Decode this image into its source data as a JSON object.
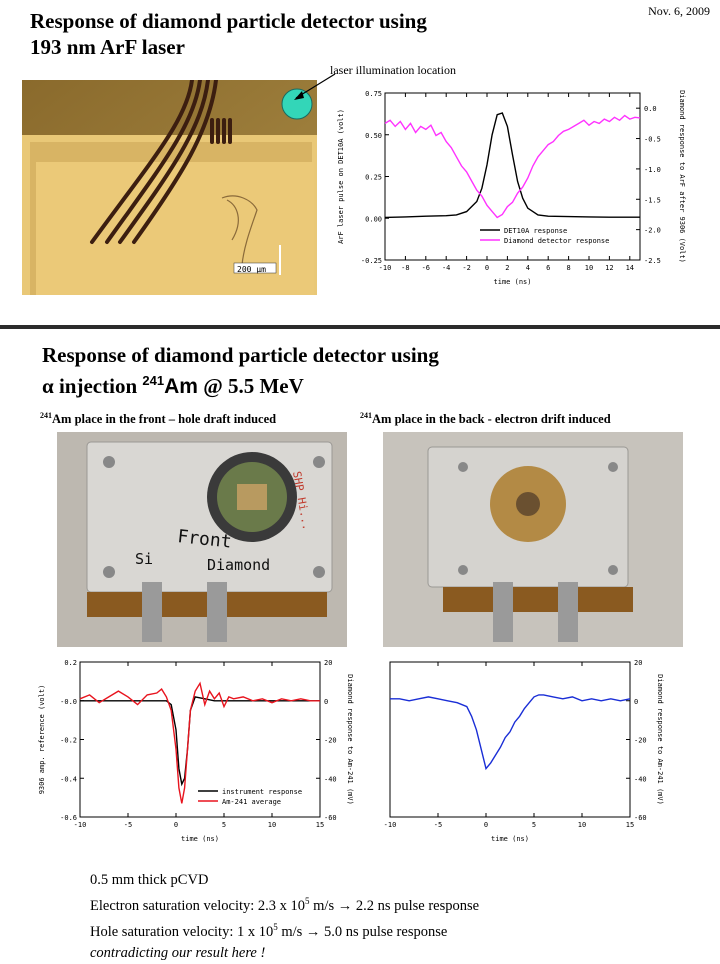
{
  "header": {
    "date": "Nov. 6, 2009",
    "title_line1": "Response of diamond particle detector using",
    "title_line2": "193 nm ArF laser",
    "callout": "laser illumination location",
    "scale_label": "200 μm"
  },
  "section2": {
    "title_line1": "Response of diamond particle detector using",
    "title_line2_prefix": "α injection ",
    "title_iso_sup": "241",
    "title_iso": "Am",
    "title_line2_suffix": " @ 5.5 MeV",
    "caption_left_sup": "241",
    "caption_left": "Am place in the front – hole draft induced",
    "caption_right_sup": "241",
    "caption_right": "Am place in the back - electron drift induced",
    "label_front": "Front",
    "label_si": "Si",
    "label_diamond": "Diamond",
    "label_side": "SHP Hi..."
  },
  "notes": {
    "line1": "0.5 mm thick pCVD",
    "line2_a": "Electron saturation velocity: 2.3 x 10",
    "line2_sup": "5",
    "line2_b": " m/s → 2.2 ns   pulse response",
    "line3_a": "Hole saturation velocity:         1 x 10",
    "line3_sup": "5",
    "line3_b": " m/s → 5.0 ns   pulse response",
    "line4": "contradicting our result here !"
  },
  "colors": {
    "black_trace": "#000000",
    "magenta_trace": "#ff33ff",
    "red_trace": "#e8141e",
    "blue_trace": "#1a2ed6",
    "teal_marker": "#33d6b8"
  },
  "chart_data": [
    {
      "id": "arf",
      "type": "line",
      "xlabel": "time (ns)",
      "ylabel": "ArF laser pulse on DET10A (volt)",
      "y2label": "Diamond response to ArF after 9306 (Volt)",
      "xlim": [
        -10,
        15
      ],
      "ylim": [
        -0.25,
        0.75
      ],
      "y2lim": [
        -2.5,
        0.25
      ],
      "xticks": [
        "-10",
        "-8",
        "-6",
        "-4",
        "-2",
        "0",
        "2",
        "4",
        "6",
        "8",
        "10",
        "12",
        "14"
      ],
      "yticks": [
        "0.75",
        "0.50",
        "0.25",
        "0.00",
        "-0.25"
      ],
      "y2ticks": [
        "0.0",
        "-0.5",
        "-1.0",
        "-1.5",
        "-2.0",
        "-2.5"
      ],
      "legend_position": "bottom-right",
      "series": [
        {
          "name": "DET10A response",
          "axis": "left",
          "color": "#000000",
          "x": [
            -10,
            -8,
            -6,
            -4,
            -3,
            -2,
            -1,
            -0.5,
            0,
            0.5,
            1,
            1.5,
            2,
            2.5,
            3,
            3.5,
            4,
            5,
            6,
            8,
            10,
            12,
            14,
            15
          ],
          "y": [
            0.005,
            0.008,
            0.012,
            0.015,
            0.02,
            0.04,
            0.1,
            0.18,
            0.32,
            0.5,
            0.62,
            0.63,
            0.55,
            0.38,
            0.22,
            0.12,
            0.06,
            0.02,
            0.012,
            0.01,
            0.008,
            0.006,
            0.006,
            0.006
          ]
        },
        {
          "name": "Diamond detector response",
          "axis": "right",
          "color": "#ff33ff",
          "x": [
            -10,
            -9.5,
            -9,
            -8.5,
            -8,
            -7.5,
            -7,
            -6.5,
            -6,
            -5.5,
            -5,
            -4.5,
            -4,
            -3.5,
            -3,
            -2.5,
            -2,
            -1.5,
            -1,
            -0.5,
            0,
            0.5,
            1,
            1.5,
            2,
            2.5,
            3,
            3.5,
            4,
            4.5,
            5,
            5.5,
            6,
            6.5,
            7,
            7.5,
            8,
            8.5,
            9,
            9.5,
            10,
            10.5,
            11,
            11.5,
            12,
            12.5,
            13,
            13.5,
            14,
            14.5,
            15
          ],
          "y": [
            -0.25,
            -0.2,
            -0.3,
            -0.22,
            -0.35,
            -0.25,
            -0.4,
            -0.3,
            -0.35,
            -0.28,
            -0.45,
            -0.4,
            -0.55,
            -0.65,
            -0.8,
            -0.95,
            -1.05,
            -1.2,
            -1.35,
            -1.45,
            -1.6,
            -1.7,
            -1.8,
            -1.75,
            -1.62,
            -1.55,
            -1.4,
            -1.3,
            -1.15,
            -0.95,
            -0.8,
            -0.7,
            -0.6,
            -0.55,
            -0.45,
            -0.38,
            -0.35,
            -0.3,
            -0.25,
            -0.2,
            -0.28,
            -0.22,
            -0.25,
            -0.18,
            -0.22,
            -0.15,
            -0.2,
            -0.12,
            -0.18,
            -0.15,
            -0.16
          ]
        }
      ]
    },
    {
      "id": "am_front",
      "type": "line",
      "xlabel": "time (ns)",
      "ylabel": "9306 amp. reference (volt)",
      "y2label": "Diamond response to Am-241 (mV)",
      "xlim": [
        -10,
        15
      ],
      "ylim": [
        -0.6,
        0.2
      ],
      "y2lim": [
        -60,
        20
      ],
      "xticks": [
        "-10",
        "-5",
        "0",
        "5",
        "10",
        "15"
      ],
      "yticks": [
        "0.2",
        "-0.0",
        "-0.2",
        "-0.4",
        "-0.6"
      ],
      "y2ticks": [
        "20",
        "0",
        "-20",
        "-40",
        "-60"
      ],
      "legend_position": "bottom-right",
      "series": [
        {
          "name": "instrument response",
          "axis": "left",
          "color": "#000000",
          "x": [
            -10,
            -8,
            -6,
            -4,
            -2,
            -1,
            -0.5,
            0,
            0.3,
            0.6,
            0.9,
            1.2,
            1.5,
            2,
            3,
            4,
            6,
            8,
            10,
            12,
            15
          ],
          "y": [
            0,
            0,
            0,
            0,
            0,
            0,
            -0.02,
            -0.15,
            -0.35,
            -0.43,
            -0.4,
            -0.25,
            -0.05,
            0.02,
            0.01,
            0,
            0,
            0,
            0,
            0,
            0
          ]
        },
        {
          "name": "Am-241 average",
          "axis": "right",
          "color": "#e8141e",
          "x": [
            -10,
            -9,
            -8,
            -7,
            -6,
            -5,
            -4,
            -3,
            -2,
            -1.5,
            -1,
            -0.5,
            0,
            0.3,
            0.6,
            0.9,
            1.2,
            1.5,
            2,
            2.5,
            3,
            3.5,
            4,
            4.5,
            5,
            5.5,
            6,
            7,
            8,
            9,
            10,
            11,
            12,
            13,
            14,
            15
          ],
          "y": [
            1,
            3,
            -1,
            2,
            5,
            2,
            -2,
            3,
            4,
            6,
            2,
            -5,
            -25,
            -45,
            -53,
            -45,
            -25,
            -5,
            5,
            9,
            -2,
            5,
            1,
            4,
            -3,
            2,
            1,
            2,
            0,
            1,
            -1,
            1,
            0,
            1,
            0,
            0
          ]
        }
      ]
    },
    {
      "id": "am_back",
      "type": "line",
      "xlabel": "time (ns)",
      "y2label": "Diamond response to Am-241 (mV)",
      "xlim": [
        -10,
        15
      ],
      "ylim": [
        -0.6,
        0.2
      ],
      "y2lim": [
        -60,
        20
      ],
      "xticks": [
        "-10",
        "-5",
        "0",
        "5",
        "10",
        "15"
      ],
      "y2ticks": [
        "20",
        "0",
        "-20",
        "-40",
        "-60"
      ],
      "series": [
        {
          "name": "",
          "axis": "right",
          "color": "#1a2ed6",
          "x": [
            -10,
            -9,
            -8,
            -7,
            -6,
            -5,
            -4,
            -3,
            -2,
            -1.5,
            -1,
            -0.5,
            0,
            0.5,
            1,
            1.5,
            2,
            2.5,
            3,
            3.5,
            4,
            4.5,
            5,
            5.5,
            6,
            7,
            8,
            9,
            10,
            11,
            12,
            13,
            14,
            15
          ],
          "y": [
            1,
            1,
            0,
            1,
            2,
            1,
            0,
            -1,
            -3,
            -8,
            -15,
            -25,
            -35,
            -32,
            -28,
            -24,
            -19,
            -16,
            -11,
            -8,
            -4,
            -1,
            2,
            3,
            3,
            2,
            1,
            2,
            0,
            1,
            0,
            1,
            0,
            1
          ]
        }
      ]
    }
  ]
}
